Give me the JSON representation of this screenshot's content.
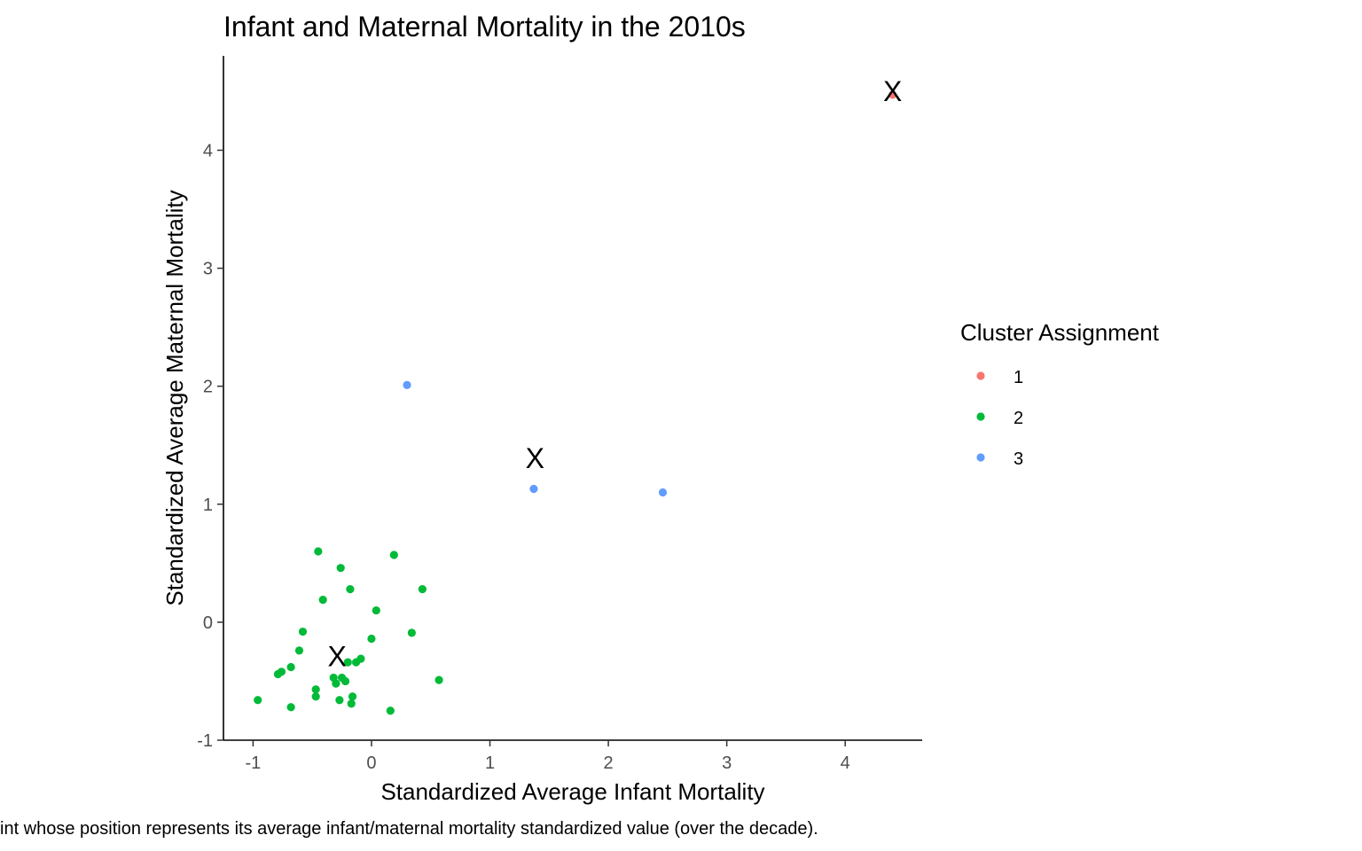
{
  "chart_data": {
    "type": "scatter",
    "title": "Infant and Maternal Mortality in the 2010s",
    "xlabel": "Standardized Average Infant Mortality",
    "ylabel": "Standardized Average Maternal Mortality",
    "caption": "int whose position represents its average infant/maternal mortality standardized value (over the decade).",
    "xlim": [
      -1.25,
      4.65
    ],
    "ylim": [
      -1.0,
      4.8
    ],
    "x_ticks": [
      -1,
      0,
      1,
      2,
      3,
      4
    ],
    "y_ticks": [
      -1,
      0,
      1,
      2,
      3,
      4
    ],
    "grid": false,
    "legend": {
      "title": "Cluster Assignment",
      "placement": "right",
      "entries": [
        {
          "label": "1",
          "color": "#F8766D"
        },
        {
          "label": "2",
          "color": "#00BA38"
        },
        {
          "label": "3",
          "color": "#619CFF"
        }
      ]
    },
    "series": [
      {
        "name": "1",
        "color": "#F8766D",
        "points": [
          [
            4.4,
            4.47
          ]
        ]
      },
      {
        "name": "2",
        "color": "#00BA38",
        "points": [
          [
            -0.96,
            -0.66
          ],
          [
            -0.79,
            -0.44
          ],
          [
            -0.76,
            -0.42
          ],
          [
            -0.68,
            -0.38
          ],
          [
            -0.68,
            -0.72
          ],
          [
            -0.61,
            -0.24
          ],
          [
            -0.58,
            -0.08
          ],
          [
            -0.47,
            -0.57
          ],
          [
            -0.47,
            -0.63
          ],
          [
            -0.45,
            0.6
          ],
          [
            -0.41,
            0.19
          ],
          [
            -0.32,
            -0.47
          ],
          [
            -0.3,
            -0.52
          ],
          [
            -0.27,
            -0.66
          ],
          [
            -0.26,
            0.46
          ],
          [
            -0.25,
            -0.47
          ],
          [
            -0.22,
            -0.5
          ],
          [
            -0.2,
            -0.34
          ],
          [
            -0.18,
            0.28
          ],
          [
            -0.17,
            -0.69
          ],
          [
            -0.16,
            -0.63
          ],
          [
            -0.13,
            -0.34
          ],
          [
            -0.09,
            -0.31
          ],
          [
            0.0,
            -0.14
          ],
          [
            0.04,
            0.1
          ],
          [
            0.16,
            -0.75
          ],
          [
            0.19,
            0.57
          ],
          [
            0.34,
            -0.09
          ],
          [
            0.43,
            0.28
          ],
          [
            0.57,
            -0.49
          ]
        ]
      },
      {
        "name": "3",
        "color": "#619CFF",
        "points": [
          [
            0.3,
            2.01
          ],
          [
            1.37,
            1.13
          ],
          [
            2.46,
            1.1
          ]
        ]
      }
    ],
    "centroids": {
      "marker": "X",
      "points": [
        [
          4.4,
          4.5
        ],
        [
          1.38,
          1.39
        ],
        [
          -0.29,
          -0.29
        ]
      ]
    }
  }
}
